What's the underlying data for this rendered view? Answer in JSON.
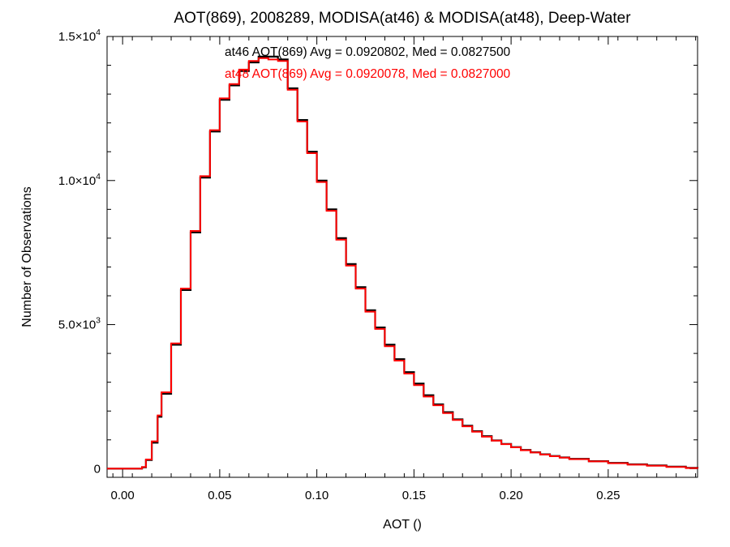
{
  "chart_data": {
    "type": "line",
    "title": "AOT(869), 2008289, MODISA(at46) & MODISA(at48), Deep-Water",
    "xlabel": "AOT ()",
    "ylabel": "Number of Observations",
    "xlim": [
      -0.008,
      0.296
    ],
    "ylim": [
      -300,
      15000
    ],
    "x_ticks": [
      {
        "value": 0.0,
        "label": "0.00"
      },
      {
        "value": 0.05,
        "label": "0.05"
      },
      {
        "value": 0.1,
        "label": "0.10"
      },
      {
        "value": 0.15,
        "label": "0.15"
      },
      {
        "value": 0.2,
        "label": "0.20"
      },
      {
        "value": 0.25,
        "label": "0.25"
      }
    ],
    "y_ticks": [
      {
        "value": 0,
        "mant": "0",
        "exp": ""
      },
      {
        "value": 5000,
        "mant": "5.0×10",
        "exp": "3"
      },
      {
        "value": 10000,
        "mant": "1.0×10",
        "exp": "4"
      },
      {
        "value": 15000,
        "mant": "1.5×10",
        "exp": "4"
      }
    ],
    "annotations": [
      {
        "text": "at46 AOT(869) Avg = 0.0920802, Med = 0.0827500",
        "color": "#000000"
      },
      {
        "text": "at48 AOT(869) Avg = 0.0920078, Med = 0.0827000",
        "color": "#ff0000"
      }
    ],
    "series": [
      {
        "color": "#000000",
        "x": [
          -0.008,
          0.0,
          0.01,
          0.012,
          0.015,
          0.018,
          0.02,
          0.025,
          0.03,
          0.035,
          0.04,
          0.045,
          0.05,
          0.055,
          0.06,
          0.065,
          0.07,
          0.075,
          0.08,
          0.085,
          0.09,
          0.095,
          0.1,
          0.105,
          0.11,
          0.115,
          0.12,
          0.125,
          0.13,
          0.135,
          0.14,
          0.145,
          0.15,
          0.155,
          0.16,
          0.165,
          0.17,
          0.175,
          0.18,
          0.185,
          0.19,
          0.195,
          0.2,
          0.205,
          0.21,
          0.215,
          0.22,
          0.225,
          0.23,
          0.24,
          0.25,
          0.26,
          0.27,
          0.28,
          0.29,
          0.296
        ],
        "values": [
          0,
          0,
          50,
          300,
          900,
          1800,
          2600,
          4300,
          6200,
          8200,
          10100,
          11700,
          12800,
          13300,
          13800,
          14100,
          14300,
          14300,
          14200,
          13200,
          12100,
          11000,
          10000,
          9000,
          8000,
          7100,
          6300,
          5500,
          4900,
          4300,
          3800,
          3350,
          2950,
          2550,
          2230,
          1960,
          1710,
          1490,
          1300,
          1130,
          980,
          860,
          750,
          650,
          570,
          500,
          440,
          390,
          340,
          260,
          200,
          150,
          110,
          70,
          30,
          0
        ]
      },
      {
        "color": "#ff0000",
        "x": [
          -0.008,
          0.0,
          0.01,
          0.012,
          0.015,
          0.018,
          0.02,
          0.025,
          0.03,
          0.035,
          0.04,
          0.045,
          0.05,
          0.055,
          0.06,
          0.065,
          0.07,
          0.075,
          0.08,
          0.085,
          0.09,
          0.095,
          0.1,
          0.105,
          0.11,
          0.115,
          0.12,
          0.125,
          0.13,
          0.135,
          0.14,
          0.145,
          0.15,
          0.155,
          0.16,
          0.165,
          0.17,
          0.175,
          0.18,
          0.185,
          0.19,
          0.195,
          0.2,
          0.205,
          0.21,
          0.215,
          0.22,
          0.225,
          0.23,
          0.24,
          0.25,
          0.26,
          0.27,
          0.28,
          0.29,
          0.296
        ],
        "values": [
          0,
          0,
          60,
          320,
          950,
          1850,
          2650,
          4350,
          6250,
          8250,
          10150,
          11750,
          12850,
          13350,
          13850,
          14150,
          14250,
          14200,
          14150,
          13150,
          12050,
          10950,
          9950,
          8950,
          7950,
          7050,
          6250,
          5450,
          4850,
          4250,
          3750,
          3300,
          2900,
          2500,
          2200,
          1930,
          1690,
          1470,
          1280,
          1110,
          970,
          850,
          740,
          640,
          560,
          490,
          430,
          380,
          330,
          250,
          190,
          140,
          100,
          60,
          20,
          0
        ]
      }
    ],
    "grid": false,
    "legend": "none"
  }
}
